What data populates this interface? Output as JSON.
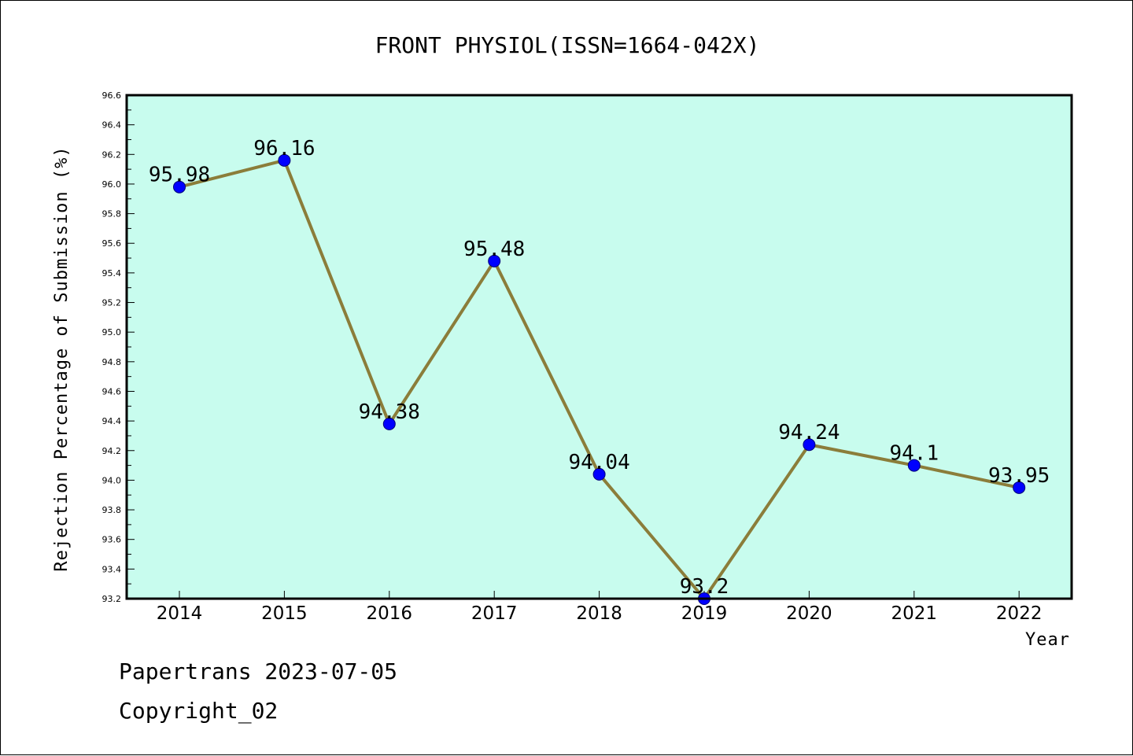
{
  "chart_data": {
    "type": "line",
    "title": "FRONT PHYSIOL(ISSN=1664-042X)",
    "xlabel": "Year",
    "ylabel": "Rejection Percentage of Submission (%)",
    "categories": [
      "2014",
      "2015",
      "2016",
      "2017",
      "2018",
      "2019",
      "2020",
      "2021",
      "2022"
    ],
    "values": [
      95.98,
      96.16,
      94.38,
      95.48,
      94.04,
      93.2,
      94.24,
      94.1,
      93.95
    ],
    "data_labels": [
      "95.98",
      "96.16",
      "94.38",
      "95.48",
      "94.04",
      "93.2",
      "94.24",
      "94.1",
      "93.95"
    ],
    "ylim": [
      93.2,
      96.6
    ],
    "yticks": [
      "93.2",
      "93.4",
      "93.6",
      "93.8",
      "94.0",
      "94.2",
      "94.4",
      "94.6",
      "94.8",
      "95.0",
      "95.2",
      "95.4",
      "95.6",
      "95.8",
      "96.0",
      "96.2",
      "96.4",
      "96.6"
    ],
    "grid": false,
    "colors": {
      "plot_background": "#c8fcee",
      "line": "#8b7d3a",
      "marker": "#0000ff",
      "axes": "#000000"
    }
  },
  "footer": {
    "line1": "Papertrans 2023-07-05",
    "line2": "Copyright_02"
  }
}
